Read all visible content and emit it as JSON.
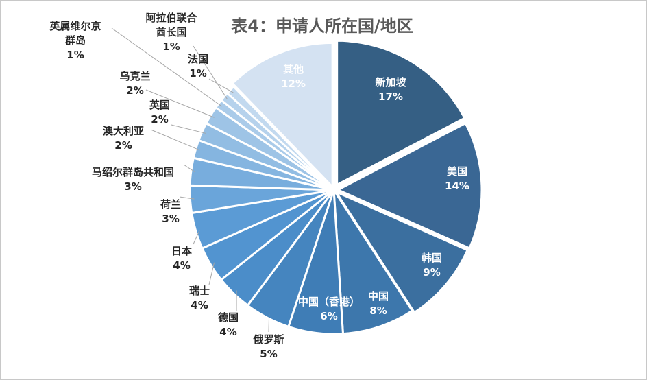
{
  "chart_data": {
    "type": "pie",
    "title": "表4：申请人所在国/地区",
    "slices": [
      {
        "label": "新加坡",
        "value": 17,
        "pct": "17%",
        "color": "#355f84"
      },
      {
        "label": "美国",
        "value": 14,
        "pct": "14%",
        "color": "#3a6794"
      },
      {
        "label": "韩国",
        "value": 9,
        "pct": "9%",
        "color": "#3b6f9f"
      },
      {
        "label": "中国",
        "value": 8,
        "pct": "8%",
        "color": "#3d77ac"
      },
      {
        "label": "中国（香港）",
        "value": 6,
        "pct": "6%",
        "color": "#3f7db6"
      },
      {
        "label": "俄罗斯",
        "value": 5,
        "pct": "5%",
        "color": "#4585bf"
      },
      {
        "label": "德国",
        "value": 4,
        "pct": "4%",
        "color": "#4b8dc9"
      },
      {
        "label": "瑞士",
        "value": 4,
        "pct": "4%",
        "color": "#5294d0"
      },
      {
        "label": "日本",
        "value": 4,
        "pct": "4%",
        "color": "#5b9bd5"
      },
      {
        "label": "荷兰",
        "value": 3,
        "pct": "3%",
        "color": "#6aa5da"
      },
      {
        "label": "马绍尔群岛共和国",
        "value": 3,
        "pct": "3%",
        "color": "#78addd"
      },
      {
        "label": "澳大利亚",
        "value": 2,
        "pct": "2%",
        "color": "#85b5e0"
      },
      {
        "label": "英国",
        "value": 2,
        "pct": "2%",
        "color": "#92bde3"
      },
      {
        "label": "乌克兰",
        "value": 2,
        "pct": "2%",
        "color": "#9ec4e6"
      },
      {
        "label": "英属维尔京群岛",
        "value": 1,
        "pct": "1%",
        "color": "#aacbe9"
      },
      {
        "label": "阿拉伯联合酋长国",
        "value": 1,
        "pct": "1%",
        "color": "#b6d2ec"
      },
      {
        "label": "法国",
        "value": 1,
        "pct": "1%",
        "color": "#c2d9ef"
      },
      {
        "label": "其他",
        "value": 12,
        "pct": "12%",
        "color": "#d4e2f2"
      }
    ]
  }
}
